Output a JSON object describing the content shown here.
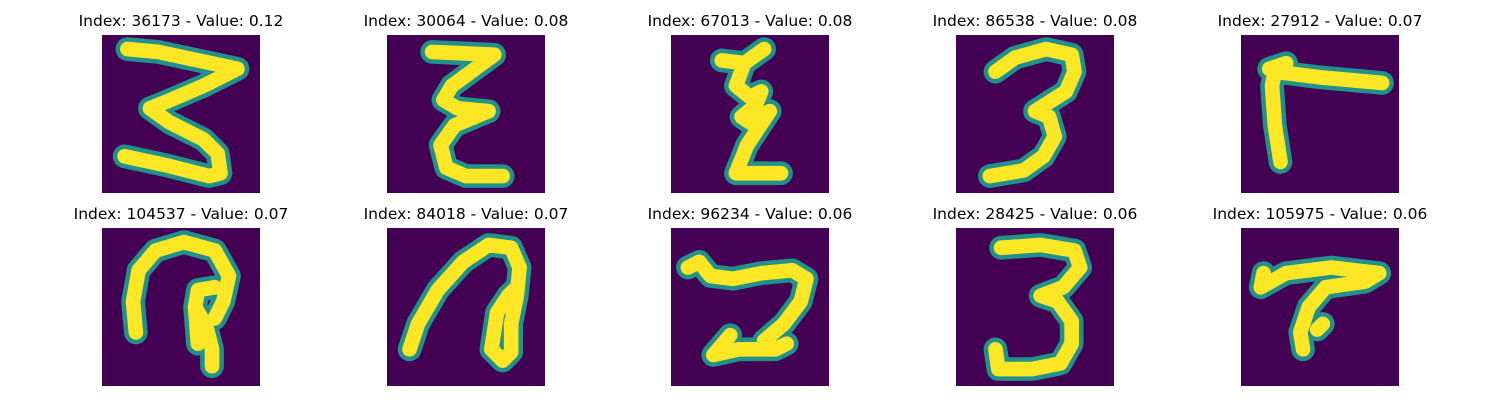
{
  "colors": {
    "background": "#440154",
    "stroke": "#fde725",
    "edge": "#21918c"
  },
  "panels": [
    {
      "title": "Index: 36173 - Value: 0.12",
      "glyph": "three-pointed"
    },
    {
      "title": "Index: 30064 - Value: 0.08",
      "glyph": "epsilon-zigzag"
    },
    {
      "title": "Index: 67013 - Value: 0.08",
      "glyph": "epsilon-narrow"
    },
    {
      "title": "Index: 86538 - Value: 0.08",
      "glyph": "three-round"
    },
    {
      "title": "Index: 27912 - Value: 0.07",
      "glyph": "gamma-corner"
    },
    {
      "title": "Index: 104537 - Value: 0.07",
      "glyph": "hook-loop"
    },
    {
      "title": "Index: 84018 - Value: 0.07",
      "glyph": "arch-loop"
    },
    {
      "title": "Index: 96234 - Value: 0.06",
      "glyph": "z-sideways"
    },
    {
      "title": "Index: 28425 - Value: 0.06",
      "glyph": "three-upright"
    },
    {
      "title": "Index: 105975 - Value: 0.06",
      "glyph": "t-bar"
    }
  ]
}
